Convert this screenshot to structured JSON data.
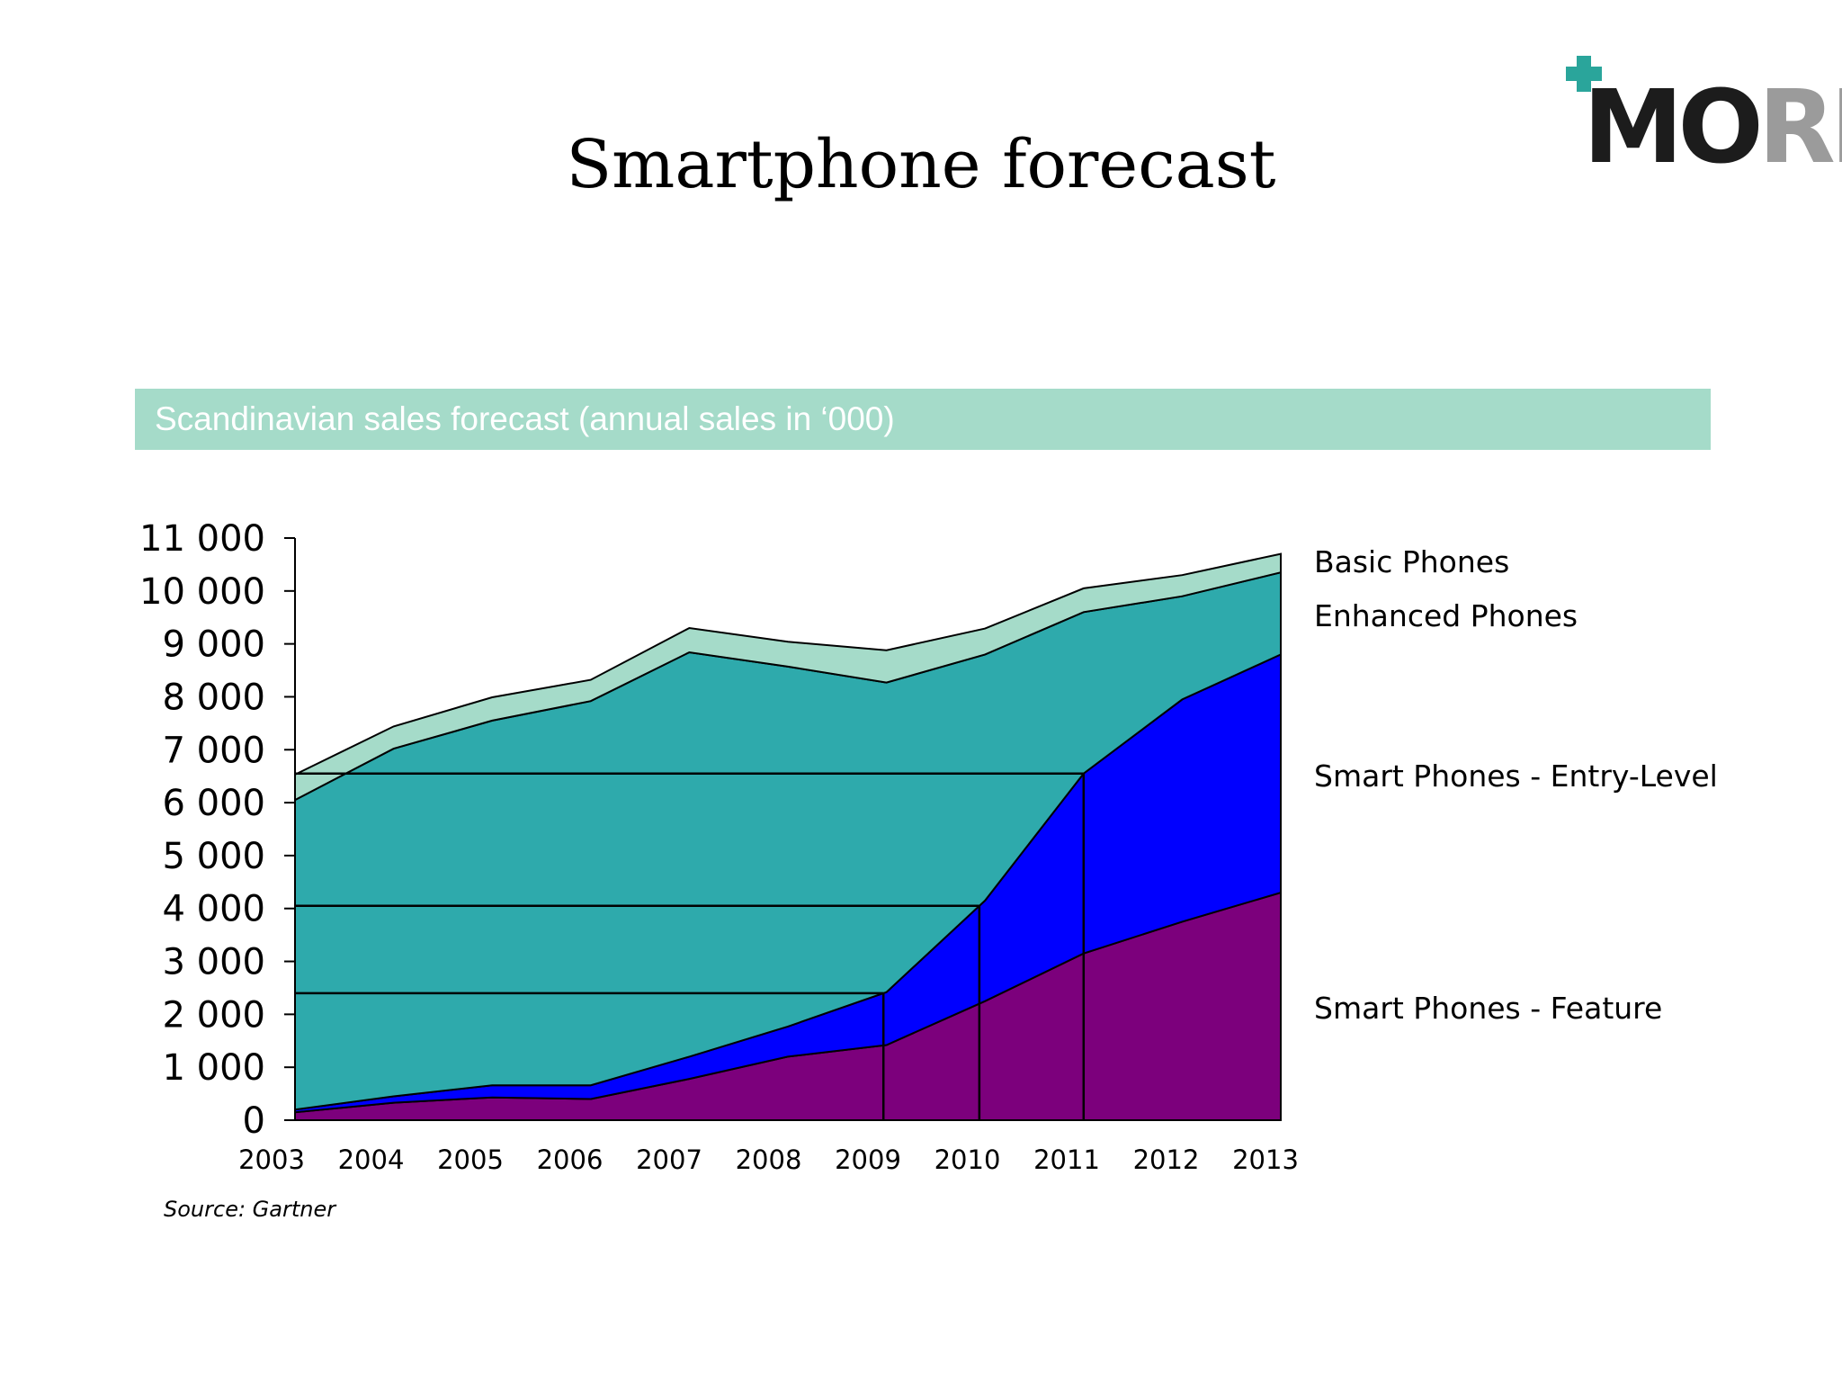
{
  "slide": {
    "title": "Smartphone forecast",
    "banner": "Scandinavian sales forecast (annual sales in ‘000)",
    "source": "Source: Gartner",
    "logo": {
      "text_dark": "MO",
      "text_grey": "RE",
      "symbol": "plus-icon"
    }
  },
  "colors": {
    "banner_bg": "#a5dbc9",
    "basic": "#a5dbc9",
    "enhanced": "#2eaaac",
    "entry": "#0000ff",
    "feature": "#7c007c",
    "logo_plus": "#2aa59b"
  },
  "chart_data": {
    "type": "area",
    "stacked": true,
    "categories": [
      "2003",
      "2004",
      "2005",
      "2006",
      "2007",
      "2008",
      "2009",
      "2010",
      "2011",
      "2012",
      "2013"
    ],
    "y_ticks": [
      "0",
      "1 000",
      "2 000",
      "3 000",
      "4 000",
      "5 000",
      "6 000",
      "7 000",
      "8 000",
      "9 000",
      "10 000",
      "11 000"
    ],
    "ylim": [
      0,
      11000
    ],
    "series": [
      {
        "name": "Smart Phones - Feature",
        "color": "#7c007c",
        "values": [
          150,
          330,
          430,
          400,
          780,
          1200,
          1420,
          2250,
          3150,
          3750,
          4300
        ]
      },
      {
        "name": "Smart Phones - Entry-Level",
        "color": "#0000ff",
        "values": [
          50,
          120,
          230,
          260,
          420,
          570,
          1000,
          1900,
          3400,
          4200,
          4500
        ]
      },
      {
        "name": "Enhanced Phones",
        "color": "#2eaaac",
        "values": [
          5850,
          6570,
          6890,
          7260,
          7640,
          6800,
          5850,
          4650,
          3050,
          1950,
          1550
        ]
      },
      {
        "name": "Basic Phones",
        "color": "#a5dbc9",
        "values": [
          480,
          420,
          440,
          400,
          460,
          470,
          610,
          490,
          450,
          400,
          350
        ]
      }
    ],
    "reference_lines": [
      2400,
      4050,
      6550
    ],
    "legend": "right",
    "grid": false
  }
}
